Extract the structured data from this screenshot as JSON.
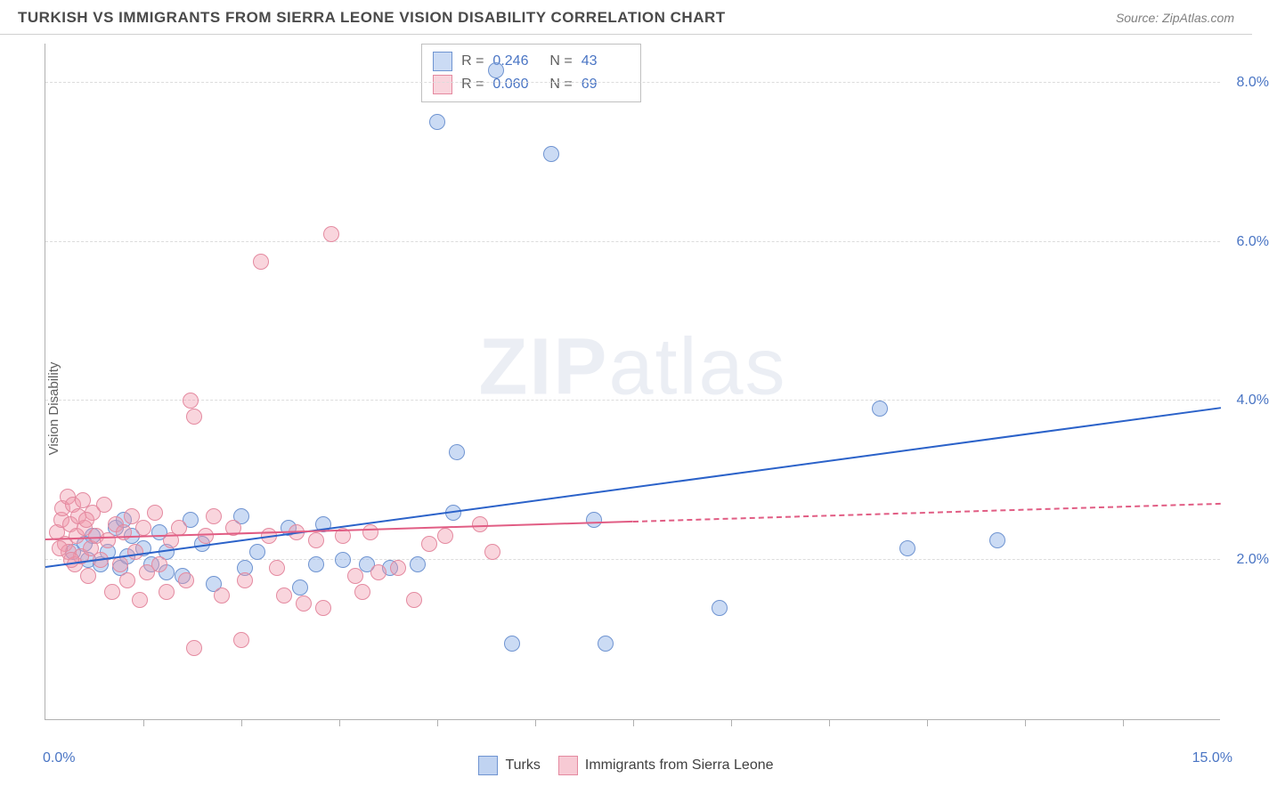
{
  "header": {
    "title": "TURKISH VS IMMIGRANTS FROM SIERRA LEONE VISION DISABILITY CORRELATION CHART",
    "source": "Source: ZipAtlas.com"
  },
  "chart": {
    "type": "scatter",
    "ylabel": "Vision Disability",
    "background_color": "#ffffff",
    "grid_color": "#dcdcdc",
    "axis_color": "#b0b0b0",
    "xlim": [
      0,
      15
    ],
    "ylim": [
      0,
      8.5
    ],
    "ytick_values": [
      2.0,
      4.0,
      6.0,
      8.0
    ],
    "ytick_labels": [
      "2.0%",
      "4.0%",
      "6.0%",
      "8.0%"
    ],
    "xtick_values": [
      1.25,
      2.5,
      3.75,
      5.0,
      6.25,
      7.5,
      8.75,
      10.0,
      11.25,
      12.5,
      13.75
    ],
    "xcorner_left": "0.0%",
    "xcorner_right": "15.0%",
    "marker_radius": 9,
    "marker_border_width": 1,
    "series": [
      {
        "name": "Turks",
        "label": "Turks",
        "fill_color": "rgba(140,175,230,0.45)",
        "stroke_color": "#6f94d1",
        "trend_color": "#2b62c9",
        "stats": {
          "R": "0.246",
          "N": "43"
        },
        "trend": {
          "x1": 0.0,
          "y1": 1.9,
          "x2": 15.0,
          "y2": 3.9,
          "solid_until_x": 15.0
        },
        "points": [
          [
            0.35,
            2.1
          ],
          [
            0.55,
            2.0
          ],
          [
            0.6,
            2.3
          ],
          [
            0.8,
            2.1
          ],
          [
            0.9,
            2.4
          ],
          [
            0.95,
            1.9
          ],
          [
            1.0,
            2.5
          ],
          [
            1.05,
            2.05
          ],
          [
            1.25,
            2.15
          ],
          [
            1.35,
            1.95
          ],
          [
            1.45,
            2.35
          ],
          [
            1.55,
            2.1
          ],
          [
            1.75,
            1.8
          ],
          [
            1.85,
            2.5
          ],
          [
            2.0,
            2.2
          ],
          [
            2.15,
            1.7
          ],
          [
            2.5,
            2.55
          ],
          [
            2.55,
            1.9
          ],
          [
            2.7,
            2.1
          ],
          [
            3.1,
            2.4
          ],
          [
            3.25,
            1.65
          ],
          [
            3.45,
            1.95
          ],
          [
            3.55,
            2.45
          ],
          [
            3.8,
            2.0
          ],
          [
            4.1,
            1.95
          ],
          [
            4.4,
            1.9
          ],
          [
            4.75,
            1.95
          ],
          [
            5.2,
            2.6
          ],
          [
            5.25,
            3.35
          ],
          [
            5.0,
            7.5
          ],
          [
            5.75,
            8.15
          ],
          [
            5.95,
            0.95
          ],
          [
            6.45,
            7.1
          ],
          [
            7.0,
            2.5
          ],
          [
            7.15,
            0.95
          ],
          [
            8.6,
            1.4
          ],
          [
            10.65,
            3.9
          ],
          [
            11.0,
            2.15
          ],
          [
            12.15,
            2.25
          ],
          [
            0.7,
            1.95
          ],
          [
            1.1,
            2.3
          ],
          [
            1.55,
            1.85
          ],
          [
            0.5,
            2.2
          ]
        ]
      },
      {
        "name": "Immigrants from Sierra Leone",
        "label": "Immigrants from Sierra Leone",
        "fill_color": "rgba(240,150,170,0.40)",
        "stroke_color": "#e48aa0",
        "trend_color": "#e15d84",
        "stats": {
          "R": "0.060",
          "N": "69"
        },
        "trend": {
          "x1": 0.0,
          "y1": 2.25,
          "x2": 15.0,
          "y2": 2.7,
          "solid_until_x": 7.5
        },
        "points": [
          [
            0.15,
            2.35
          ],
          [
            0.2,
            2.5
          ],
          [
            0.22,
            2.65
          ],
          [
            0.25,
            2.2
          ],
          [
            0.28,
            2.8
          ],
          [
            0.3,
            2.1
          ],
          [
            0.32,
            2.45
          ],
          [
            0.35,
            2.7
          ],
          [
            0.38,
            1.95
          ],
          [
            0.4,
            2.3
          ],
          [
            0.42,
            2.55
          ],
          [
            0.45,
            2.05
          ],
          [
            0.48,
            2.75
          ],
          [
            0.5,
            2.4
          ],
          [
            0.55,
            1.8
          ],
          [
            0.58,
            2.15
          ],
          [
            0.6,
            2.6
          ],
          [
            0.65,
            2.3
          ],
          [
            0.7,
            2.0
          ],
          [
            0.75,
            2.7
          ],
          [
            0.8,
            2.25
          ],
          [
            0.85,
            1.6
          ],
          [
            0.9,
            2.45
          ],
          [
            0.95,
            1.95
          ],
          [
            1.0,
            2.35
          ],
          [
            1.05,
            1.75
          ],
          [
            1.1,
            2.55
          ],
          [
            1.15,
            2.1
          ],
          [
            1.2,
            1.5
          ],
          [
            1.25,
            2.4
          ],
          [
            1.3,
            1.85
          ],
          [
            1.4,
            2.6
          ],
          [
            1.45,
            1.95
          ],
          [
            1.55,
            1.6
          ],
          [
            1.6,
            2.25
          ],
          [
            1.7,
            2.4
          ],
          [
            1.8,
            1.75
          ],
          [
            1.85,
            4.0
          ],
          [
            1.9,
            3.8
          ],
          [
            1.9,
            0.9
          ],
          [
            2.05,
            2.3
          ],
          [
            2.15,
            2.55
          ],
          [
            2.25,
            1.55
          ],
          [
            2.4,
            2.4
          ],
          [
            2.5,
            1.0
          ],
          [
            2.55,
            1.75
          ],
          [
            2.75,
            5.75
          ],
          [
            2.85,
            2.3
          ],
          [
            2.95,
            1.9
          ],
          [
            3.05,
            1.55
          ],
          [
            3.2,
            2.35
          ],
          [
            3.3,
            1.45
          ],
          [
            3.45,
            2.25
          ],
          [
            3.55,
            1.4
          ],
          [
            3.65,
            6.1
          ],
          [
            3.8,
            2.3
          ],
          [
            3.95,
            1.8
          ],
          [
            4.05,
            1.6
          ],
          [
            4.15,
            2.35
          ],
          [
            4.25,
            1.85
          ],
          [
            4.5,
            1.9
          ],
          [
            4.7,
            1.5
          ],
          [
            4.9,
            2.2
          ],
          [
            5.1,
            2.3
          ],
          [
            5.55,
            2.45
          ],
          [
            5.7,
            2.1
          ],
          [
            0.18,
            2.15
          ],
          [
            0.33,
            2.0
          ],
          [
            0.52,
            2.5
          ]
        ]
      }
    ],
    "legend": {
      "items": [
        {
          "label": "Turks",
          "fill": "rgba(140,175,230,0.55)",
          "stroke": "#6f94d1"
        },
        {
          "label": "Immigrants from Sierra Leone",
          "fill": "rgba(240,150,170,0.50)",
          "stroke": "#e48aa0"
        }
      ]
    },
    "watermark": {
      "bold": "ZIP",
      "light": "atlas"
    }
  }
}
